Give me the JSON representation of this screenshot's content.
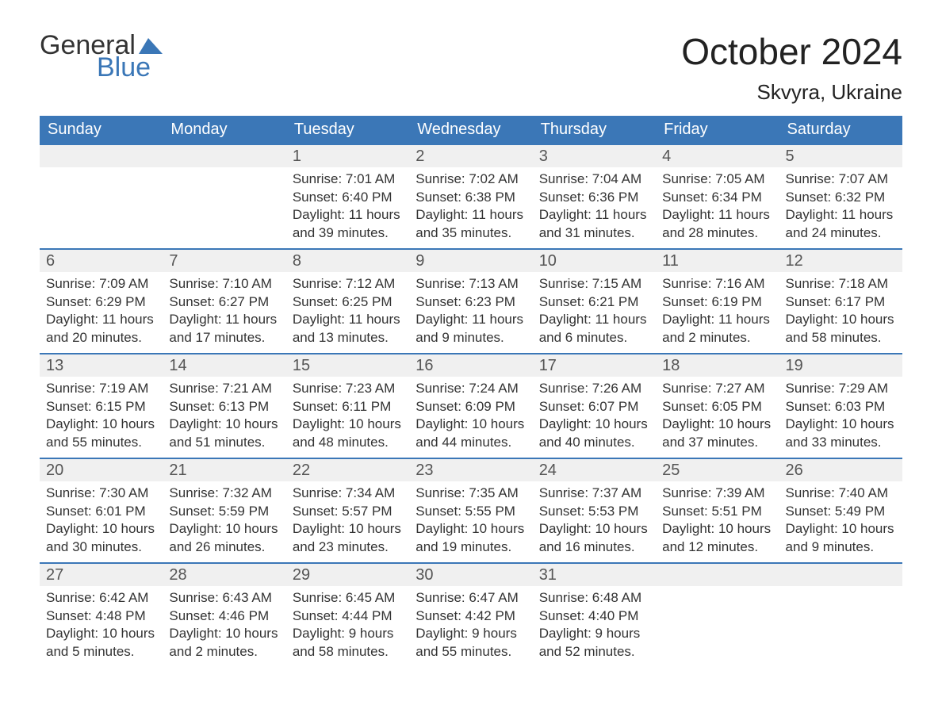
{
  "brand": {
    "part1": "General",
    "part2": "Blue",
    "flag_color": "#3b77b7"
  },
  "title": "October 2024",
  "location": "Skvyra, Ukraine",
  "colors": {
    "header_bg": "#3b77b7",
    "header_text": "#ffffff",
    "daynum_bg": "#f0f0f0",
    "rule": "#3b77b7",
    "body_text": "#333333"
  },
  "weekdays": [
    "Sunday",
    "Monday",
    "Tuesday",
    "Wednesday",
    "Thursday",
    "Friday",
    "Saturday"
  ],
  "weeks": [
    [
      null,
      null,
      {
        "n": "1",
        "sunrise": "Sunrise: 7:01 AM",
        "sunset": "Sunset: 6:40 PM",
        "day1": "Daylight: 11 hours",
        "day2": "and 39 minutes."
      },
      {
        "n": "2",
        "sunrise": "Sunrise: 7:02 AM",
        "sunset": "Sunset: 6:38 PM",
        "day1": "Daylight: 11 hours",
        "day2": "and 35 minutes."
      },
      {
        "n": "3",
        "sunrise": "Sunrise: 7:04 AM",
        "sunset": "Sunset: 6:36 PM",
        "day1": "Daylight: 11 hours",
        "day2": "and 31 minutes."
      },
      {
        "n": "4",
        "sunrise": "Sunrise: 7:05 AM",
        "sunset": "Sunset: 6:34 PM",
        "day1": "Daylight: 11 hours",
        "day2": "and 28 minutes."
      },
      {
        "n": "5",
        "sunrise": "Sunrise: 7:07 AM",
        "sunset": "Sunset: 6:32 PM",
        "day1": "Daylight: 11 hours",
        "day2": "and 24 minutes."
      }
    ],
    [
      {
        "n": "6",
        "sunrise": "Sunrise: 7:09 AM",
        "sunset": "Sunset: 6:29 PM",
        "day1": "Daylight: 11 hours",
        "day2": "and 20 minutes."
      },
      {
        "n": "7",
        "sunrise": "Sunrise: 7:10 AM",
        "sunset": "Sunset: 6:27 PM",
        "day1": "Daylight: 11 hours",
        "day2": "and 17 minutes."
      },
      {
        "n": "8",
        "sunrise": "Sunrise: 7:12 AM",
        "sunset": "Sunset: 6:25 PM",
        "day1": "Daylight: 11 hours",
        "day2": "and 13 minutes."
      },
      {
        "n": "9",
        "sunrise": "Sunrise: 7:13 AM",
        "sunset": "Sunset: 6:23 PM",
        "day1": "Daylight: 11 hours",
        "day2": "and 9 minutes."
      },
      {
        "n": "10",
        "sunrise": "Sunrise: 7:15 AM",
        "sunset": "Sunset: 6:21 PM",
        "day1": "Daylight: 11 hours",
        "day2": "and 6 minutes."
      },
      {
        "n": "11",
        "sunrise": "Sunrise: 7:16 AM",
        "sunset": "Sunset: 6:19 PM",
        "day1": "Daylight: 11 hours",
        "day2": "and 2 minutes."
      },
      {
        "n": "12",
        "sunrise": "Sunrise: 7:18 AM",
        "sunset": "Sunset: 6:17 PM",
        "day1": "Daylight: 10 hours",
        "day2": "and 58 minutes."
      }
    ],
    [
      {
        "n": "13",
        "sunrise": "Sunrise: 7:19 AM",
        "sunset": "Sunset: 6:15 PM",
        "day1": "Daylight: 10 hours",
        "day2": "and 55 minutes."
      },
      {
        "n": "14",
        "sunrise": "Sunrise: 7:21 AM",
        "sunset": "Sunset: 6:13 PM",
        "day1": "Daylight: 10 hours",
        "day2": "and 51 minutes."
      },
      {
        "n": "15",
        "sunrise": "Sunrise: 7:23 AM",
        "sunset": "Sunset: 6:11 PM",
        "day1": "Daylight: 10 hours",
        "day2": "and 48 minutes."
      },
      {
        "n": "16",
        "sunrise": "Sunrise: 7:24 AM",
        "sunset": "Sunset: 6:09 PM",
        "day1": "Daylight: 10 hours",
        "day2": "and 44 minutes."
      },
      {
        "n": "17",
        "sunrise": "Sunrise: 7:26 AM",
        "sunset": "Sunset: 6:07 PM",
        "day1": "Daylight: 10 hours",
        "day2": "and 40 minutes."
      },
      {
        "n": "18",
        "sunrise": "Sunrise: 7:27 AM",
        "sunset": "Sunset: 6:05 PM",
        "day1": "Daylight: 10 hours",
        "day2": "and 37 minutes."
      },
      {
        "n": "19",
        "sunrise": "Sunrise: 7:29 AM",
        "sunset": "Sunset: 6:03 PM",
        "day1": "Daylight: 10 hours",
        "day2": "and 33 minutes."
      }
    ],
    [
      {
        "n": "20",
        "sunrise": "Sunrise: 7:30 AM",
        "sunset": "Sunset: 6:01 PM",
        "day1": "Daylight: 10 hours",
        "day2": "and 30 minutes."
      },
      {
        "n": "21",
        "sunrise": "Sunrise: 7:32 AM",
        "sunset": "Sunset: 5:59 PM",
        "day1": "Daylight: 10 hours",
        "day2": "and 26 minutes."
      },
      {
        "n": "22",
        "sunrise": "Sunrise: 7:34 AM",
        "sunset": "Sunset: 5:57 PM",
        "day1": "Daylight: 10 hours",
        "day2": "and 23 minutes."
      },
      {
        "n": "23",
        "sunrise": "Sunrise: 7:35 AM",
        "sunset": "Sunset: 5:55 PM",
        "day1": "Daylight: 10 hours",
        "day2": "and 19 minutes."
      },
      {
        "n": "24",
        "sunrise": "Sunrise: 7:37 AM",
        "sunset": "Sunset: 5:53 PM",
        "day1": "Daylight: 10 hours",
        "day2": "and 16 minutes."
      },
      {
        "n": "25",
        "sunrise": "Sunrise: 7:39 AM",
        "sunset": "Sunset: 5:51 PM",
        "day1": "Daylight: 10 hours",
        "day2": "and 12 minutes."
      },
      {
        "n": "26",
        "sunrise": "Sunrise: 7:40 AM",
        "sunset": "Sunset: 5:49 PM",
        "day1": "Daylight: 10 hours",
        "day2": "and 9 minutes."
      }
    ],
    [
      {
        "n": "27",
        "sunrise": "Sunrise: 6:42 AM",
        "sunset": "Sunset: 4:48 PM",
        "day1": "Daylight: 10 hours",
        "day2": "and 5 minutes."
      },
      {
        "n": "28",
        "sunrise": "Sunrise: 6:43 AM",
        "sunset": "Sunset: 4:46 PM",
        "day1": "Daylight: 10 hours",
        "day2": "and 2 minutes."
      },
      {
        "n": "29",
        "sunrise": "Sunrise: 6:45 AM",
        "sunset": "Sunset: 4:44 PM",
        "day1": "Daylight: 9 hours",
        "day2": "and 58 minutes."
      },
      {
        "n": "30",
        "sunrise": "Sunrise: 6:47 AM",
        "sunset": "Sunset: 4:42 PM",
        "day1": "Daylight: 9 hours",
        "day2": "and 55 minutes."
      },
      {
        "n": "31",
        "sunrise": "Sunrise: 6:48 AM",
        "sunset": "Sunset: 4:40 PM",
        "day1": "Daylight: 9 hours",
        "day2": "and 52 minutes."
      },
      null,
      null
    ]
  ]
}
